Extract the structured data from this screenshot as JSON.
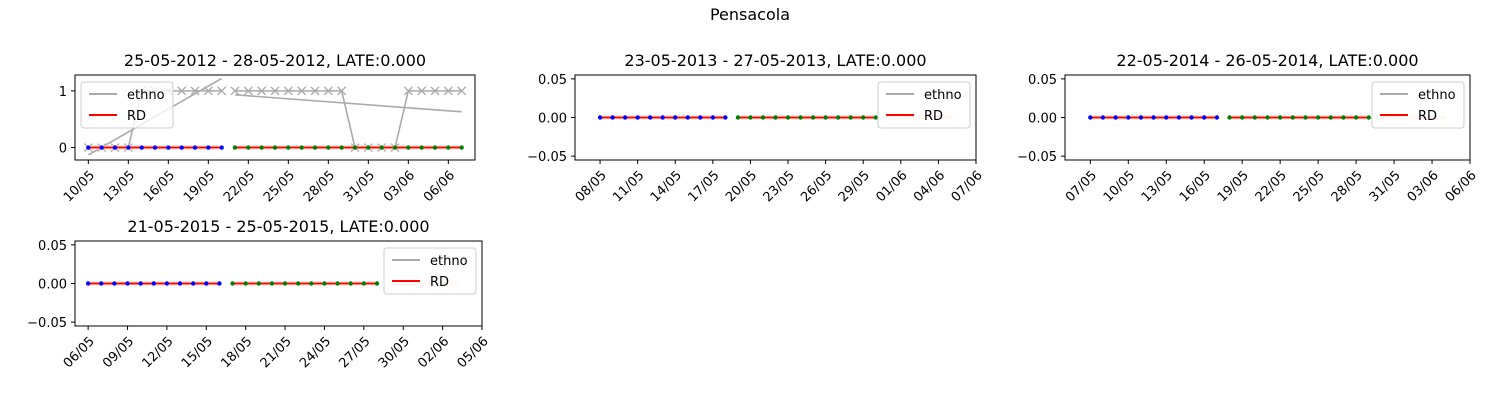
{
  "figure": {
    "suptitle": "Pensacola"
  },
  "colors": {
    "ethno": "#aaaaaa",
    "rd": "#ff0000",
    "blue": "#0000ff",
    "green": "#008000",
    "peach": "#f8d9c8"
  },
  "chart_data": [
    {
      "type": "line",
      "title": "25-05-2012 - 28-05-2012, LATE:0.000",
      "date_year": 2012,
      "xlim": [
        "2012-05-09",
        "2012-06-08"
      ],
      "xticks": [
        "10/05",
        "13/05",
        "16/05",
        "19/05",
        "22/05",
        "25/05",
        "28/05",
        "31/05",
        "03/06",
        "06/06"
      ],
      "ylim": [
        -0.22,
        1.28
      ],
      "yticks": [
        "0",
        "1"
      ],
      "ytick_values": [
        0,
        1
      ],
      "legend": {
        "placement": "upper left",
        "entries": [
          "ethno",
          "RD"
        ]
      },
      "series": [
        {
          "name": "ethno",
          "style": "line-x",
          "segments": [
            {
              "x": [
                "2012-05-10",
                "2012-05-11",
                "2012-05-12",
                "2012-05-13",
                "2012-05-14",
                "2012-05-15",
                "2012-05-16",
                "2012-05-17",
                "2012-05-18",
                "2012-05-19",
                "2012-05-20"
              ],
              "y": [
                0,
                0,
                0,
                0,
                1,
                1,
                1,
                1,
                1,
                1,
                1
              ]
            },
            {
              "x": [
                "2012-05-21",
                "2012-05-22",
                "2012-05-23",
                "2012-05-24",
                "2012-05-25",
                "2012-05-26",
                "2012-05-27",
                "2012-05-28",
                "2012-05-29",
                "2012-05-30",
                "2012-05-31",
                "2012-06-01",
                "2012-06-02",
                "2012-06-03",
                "2012-06-04",
                "2012-06-05",
                "2012-06-06",
                "2012-06-07"
              ],
              "y": [
                1,
                1,
                1,
                1,
                1,
                1,
                1,
                1,
                1,
                0,
                0,
                0,
                0,
                1,
                1,
                1,
                1,
                1
              ]
            }
          ],
          "trend_lines": [
            {
              "x": [
                "2012-05-10",
                "2012-05-20"
              ],
              "y": [
                -0.13,
                1.22
              ]
            },
            {
              "x": [
                "2012-05-21",
                "2012-06-07"
              ],
              "y": [
                0.93,
                0.63
              ]
            }
          ]
        },
        {
          "name": "RD",
          "style": "line-dot",
          "segments": [
            {
              "x_start": "2012-05-10",
              "x_end": "2012-05-20",
              "y": 0,
              "dot_color": "blue"
            },
            {
              "x_start": "2012-05-21",
              "x_end": "2012-06-07",
              "y": 0,
              "dot_color": "green"
            }
          ]
        }
      ]
    },
    {
      "type": "line",
      "title": "23-05-2013 - 27-05-2013, LATE:0.000",
      "date_year": 2013,
      "xlim": [
        "2013-05-06",
        "2013-06-07"
      ],
      "xticks": [
        "08/05",
        "11/05",
        "14/05",
        "17/05",
        "20/05",
        "23/05",
        "26/05",
        "29/05",
        "01/06",
        "04/06",
        "07/06"
      ],
      "ylim": [
        -0.055,
        0.055
      ],
      "yticks": [
        "0.05",
        "0.00",
        "−0.05"
      ],
      "ytick_values": [
        0.05,
        0,
        -0.05
      ],
      "legend": {
        "placement": "upper right",
        "entries": [
          "ethno",
          "RD"
        ]
      },
      "series": [
        {
          "name": "RD",
          "style": "line-dot",
          "segments": [
            {
              "x_start": "2013-05-08",
              "x_end": "2013-05-18",
              "y": 0,
              "dot_color": "blue"
            },
            {
              "x_start": "2013-05-19",
              "x_end": "2013-05-30",
              "y": 0,
              "dot_color": "green"
            },
            {
              "x_start": "2013-05-31",
              "x_end": "2013-06-05",
              "y": 0,
              "dot_color": "peach"
            }
          ]
        }
      ]
    },
    {
      "type": "line",
      "title": "22-05-2014 - 26-05-2014, LATE:0.000",
      "date_year": 2014,
      "xlim": [
        "2014-05-05",
        "2014-06-06"
      ],
      "xticks": [
        "07/05",
        "10/05",
        "13/05",
        "16/05",
        "19/05",
        "22/05",
        "25/05",
        "28/05",
        "31/05",
        "03/06",
        "06/06"
      ],
      "ylim": [
        -0.055,
        0.055
      ],
      "yticks": [
        "0.05",
        "0.00",
        "−0.05"
      ],
      "ytick_values": [
        0.05,
        0,
        -0.05
      ],
      "legend": {
        "placement": "upper right",
        "entries": [
          "ethno",
          "RD"
        ]
      },
      "series": [
        {
          "name": "RD",
          "style": "line-dot",
          "segments": [
            {
              "x_start": "2014-05-07",
              "x_end": "2014-05-17",
              "y": 0,
              "dot_color": "blue"
            },
            {
              "x_start": "2014-05-18",
              "x_end": "2014-05-29",
              "y": 0,
              "dot_color": "green"
            },
            {
              "x_start": "2014-05-30",
              "x_end": "2014-06-04",
              "y": 0,
              "dot_color": "peach"
            }
          ]
        }
      ]
    },
    {
      "type": "line",
      "title": "21-05-2015 - 25-05-2015, LATE:0.000",
      "date_year": 2015,
      "xlim": [
        "2015-05-05",
        "2015-06-05"
      ],
      "xticks": [
        "06/05",
        "09/05",
        "12/05",
        "15/05",
        "18/05",
        "21/05",
        "24/05",
        "27/05",
        "30/05",
        "02/06",
        "05/06"
      ],
      "ylim": [
        -0.055,
        0.055
      ],
      "yticks": [
        "0.05",
        "0.00",
        "−0.05"
      ],
      "ytick_values": [
        0.05,
        0,
        -0.05
      ],
      "legend": {
        "placement": "upper right",
        "entries": [
          "ethno",
          "RD"
        ]
      },
      "series": [
        {
          "name": "RD",
          "style": "line-dot",
          "segments": [
            {
              "x_start": "2015-05-06",
              "x_end": "2015-05-16",
              "y": 0,
              "dot_color": "blue"
            },
            {
              "x_start": "2015-05-17",
              "x_end": "2015-05-28",
              "y": 0,
              "dot_color": "green"
            },
            {
              "x_start": "2015-05-29",
              "x_end": "2015-06-03",
              "y": 0,
              "dot_color": "peach"
            }
          ]
        }
      ]
    }
  ]
}
